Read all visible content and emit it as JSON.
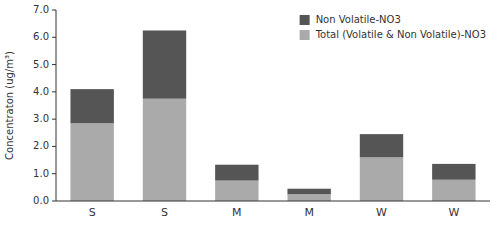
{
  "chart_data": {
    "type": "bar",
    "stacked": true,
    "categories": [
      "S",
      "S",
      "M",
      "M",
      "W",
      "W"
    ],
    "series": [
      {
        "name": "Total (Volatile & Non Volatile)-NO3",
        "color": "#aaaaaa",
        "values": [
          2.85,
          3.75,
          0.75,
          0.25,
          1.6,
          0.78
        ]
      },
      {
        "name": "Non Volatile-NO3",
        "color": "#555555",
        "values": [
          1.25,
          2.5,
          0.58,
          0.2,
          0.85,
          0.58
        ]
      }
    ],
    "ylabel": "Concentraton (ug/m³)",
    "ylim": [
      0.0,
      7.0
    ],
    "yticks": [
      {
        "value": 0.0,
        "label": "0.0"
      },
      {
        "value": 1.0,
        "label": "1.0"
      },
      {
        "value": 2.0,
        "label": "2.0"
      },
      {
        "value": 3.0,
        "label": "3.0"
      },
      {
        "value": 4.0,
        "label": "4.0"
      },
      {
        "value": 5.0,
        "label": "5.0"
      },
      {
        "value": 6.0,
        "label": "6.0"
      },
      {
        "value": 7.0,
        "label": "7.0"
      }
    ],
    "grid": false,
    "legend": "upper right"
  }
}
